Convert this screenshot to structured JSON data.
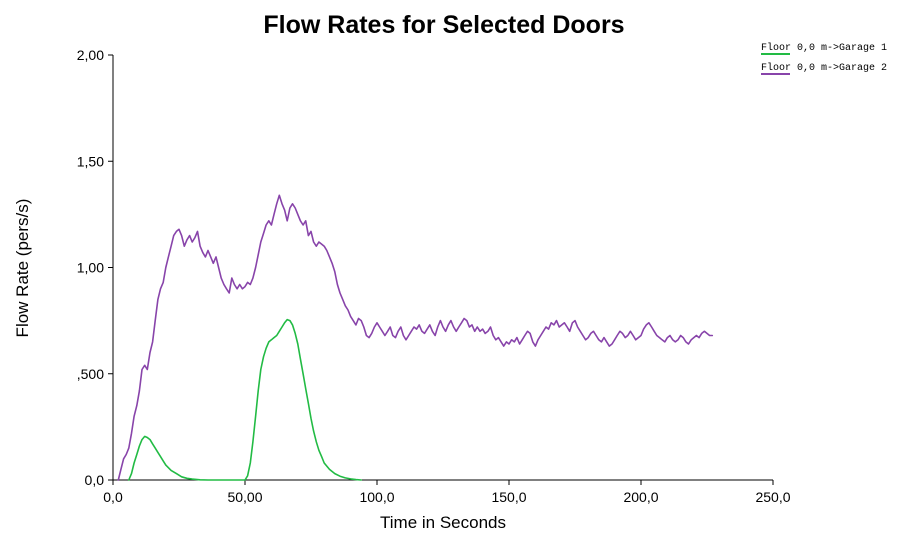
{
  "chart_data": {
    "type": "line",
    "title": "Flow Rates for Selected Doors",
    "xlabel": "Time in Seconds",
    "ylabel": "Flow Rate (pers/s)",
    "xlim": [
      0,
      250
    ],
    "ylim": [
      0,
      2
    ],
    "grid": false,
    "legend_position": "top-right",
    "x_ticks": [
      {
        "value": 0,
        "label": "0,0"
      },
      {
        "value": 50,
        "label": "50,00"
      },
      {
        "value": 100,
        "label": "100,0"
      },
      {
        "value": 150,
        "label": "150,0"
      },
      {
        "value": 200,
        "label": "200,0"
      },
      {
        "value": 250,
        "label": "250,0"
      }
    ],
    "y_ticks": [
      {
        "value": 0,
        "label": "0,0"
      },
      {
        "value": 0.5,
        "label": ",500"
      },
      {
        "value": 1.0,
        "label": "1,00"
      },
      {
        "value": 1.5,
        "label": "1,50"
      },
      {
        "value": 2.0,
        "label": "2,00"
      }
    ],
    "series": [
      {
        "name": "Floor 0,0 m->Garage 1",
        "color": "#22bb44",
        "points": [
          [
            6,
            0
          ],
          [
            7,
            0.03
          ],
          [
            8,
            0.08
          ],
          [
            9,
            0.12
          ],
          [
            10,
            0.16
          ],
          [
            11,
            0.19
          ],
          [
            12,
            0.205
          ],
          [
            13,
            0.2
          ],
          [
            14,
            0.19
          ],
          [
            15,
            0.17
          ],
          [
            16,
            0.15
          ],
          [
            17,
            0.13
          ],
          [
            18,
            0.11
          ],
          [
            19,
            0.09
          ],
          [
            20,
            0.07
          ],
          [
            22,
            0.045
          ],
          [
            24,
            0.03
          ],
          [
            26,
            0.015
          ],
          [
            28,
            0.008
          ],
          [
            30,
            0.004
          ],
          [
            33,
            0.001
          ],
          [
            36,
            0
          ],
          [
            38,
            0
          ],
          [
            50,
            0
          ],
          [
            51,
            0.02
          ],
          [
            52,
            0.08
          ],
          [
            53,
            0.18
          ],
          [
            54,
            0.3
          ],
          [
            55,
            0.42
          ],
          [
            56,
            0.52
          ],
          [
            57,
            0.58
          ],
          [
            58,
            0.62
          ],
          [
            59,
            0.65
          ],
          [
            60,
            0.66
          ],
          [
            61,
            0.67
          ],
          [
            62,
            0.68
          ],
          [
            63,
            0.7
          ],
          [
            64,
            0.72
          ],
          [
            65,
            0.74
          ],
          [
            66,
            0.755
          ],
          [
            67,
            0.75
          ],
          [
            68,
            0.73
          ],
          [
            69,
            0.69
          ],
          [
            70,
            0.64
          ],
          [
            71,
            0.57
          ],
          [
            72,
            0.5
          ],
          [
            73,
            0.43
          ],
          [
            74,
            0.36
          ],
          [
            75,
            0.29
          ],
          [
            76,
            0.23
          ],
          [
            77,
            0.18
          ],
          [
            78,
            0.14
          ],
          [
            79,
            0.11
          ],
          [
            80,
            0.08
          ],
          [
            82,
            0.05
          ],
          [
            84,
            0.03
          ],
          [
            86,
            0.018
          ],
          [
            88,
            0.01
          ],
          [
            90,
            0.005
          ],
          [
            92,
            0.002
          ],
          [
            94,
            0
          ]
        ]
      },
      {
        "name": "Floor 0,0 m->Garage 2",
        "color": "#8844aa",
        "points": [
          [
            2,
            0
          ],
          [
            3,
            0.05
          ],
          [
            4,
            0.1
          ],
          [
            5,
            0.12
          ],
          [
            6,
            0.15
          ],
          [
            7,
            0.22
          ],
          [
            8,
            0.3
          ],
          [
            9,
            0.35
          ],
          [
            10,
            0.42
          ],
          [
            11,
            0.52
          ],
          [
            12,
            0.54
          ],
          [
            13,
            0.52
          ],
          [
            14,
            0.6
          ],
          [
            15,
            0.65
          ],
          [
            16,
            0.75
          ],
          [
            17,
            0.85
          ],
          [
            18,
            0.9
          ],
          [
            19,
            0.93
          ],
          [
            20,
            1.0
          ],
          [
            21,
            1.05
          ],
          [
            22,
            1.1
          ],
          [
            23,
            1.15
          ],
          [
            24,
            1.17
          ],
          [
            25,
            1.18
          ],
          [
            26,
            1.15
          ],
          [
            27,
            1.1
          ],
          [
            28,
            1.13
          ],
          [
            29,
            1.15
          ],
          [
            30,
            1.12
          ],
          [
            31,
            1.14
          ],
          [
            32,
            1.17
          ],
          [
            33,
            1.1
          ],
          [
            34,
            1.07
          ],
          [
            35,
            1.05
          ],
          [
            36,
            1.08
          ],
          [
            37,
            1.05
          ],
          [
            38,
            1.02
          ],
          [
            39,
            1.05
          ],
          [
            40,
            1.0
          ],
          [
            41,
            0.95
          ],
          [
            42,
            0.92
          ],
          [
            43,
            0.9
          ],
          [
            44,
            0.88
          ],
          [
            45,
            0.95
          ],
          [
            46,
            0.92
          ],
          [
            47,
            0.9
          ],
          [
            48,
            0.92
          ],
          [
            49,
            0.9
          ],
          [
            50,
            0.91
          ],
          [
            51,
            0.93
          ],
          [
            52,
            0.92
          ],
          [
            53,
            0.95
          ],
          [
            54,
            1.0
          ],
          [
            55,
            1.06
          ],
          [
            56,
            1.12
          ],
          [
            57,
            1.16
          ],
          [
            58,
            1.2
          ],
          [
            59,
            1.22
          ],
          [
            60,
            1.2
          ],
          [
            61,
            1.25
          ],
          [
            62,
            1.3
          ],
          [
            63,
            1.34
          ],
          [
            64,
            1.3
          ],
          [
            65,
            1.27
          ],
          [
            66,
            1.22
          ],
          [
            67,
            1.28
          ],
          [
            68,
            1.3
          ],
          [
            69,
            1.28
          ],
          [
            70,
            1.25
          ],
          [
            71,
            1.22
          ],
          [
            72,
            1.2
          ],
          [
            73,
            1.22
          ],
          [
            74,
            1.15
          ],
          [
            75,
            1.17
          ],
          [
            76,
            1.12
          ],
          [
            77,
            1.1
          ],
          [
            78,
            1.12
          ],
          [
            79,
            1.11
          ],
          [
            80,
            1.1
          ],
          [
            81,
            1.08
          ],
          [
            82,
            1.05
          ],
          [
            83,
            1.02
          ],
          [
            84,
            0.98
          ],
          [
            85,
            0.92
          ],
          [
            86,
            0.88
          ],
          [
            87,
            0.85
          ],
          [
            88,
            0.82
          ],
          [
            89,
            0.8
          ],
          [
            90,
            0.77
          ],
          [
            91,
            0.75
          ],
          [
            92,
            0.73
          ],
          [
            93,
            0.76
          ],
          [
            94,
            0.75
          ],
          [
            95,
            0.72
          ],
          [
            96,
            0.68
          ],
          [
            97,
            0.67
          ],
          [
            98,
            0.69
          ],
          [
            99,
            0.72
          ],
          [
            100,
            0.74
          ],
          [
            101,
            0.72
          ],
          [
            102,
            0.7
          ],
          [
            103,
            0.68
          ],
          [
            104,
            0.7
          ],
          [
            105,
            0.72
          ],
          [
            106,
            0.68
          ],
          [
            107,
            0.67
          ],
          [
            108,
            0.7
          ],
          [
            109,
            0.72
          ],
          [
            110,
            0.68
          ],
          [
            111,
            0.66
          ],
          [
            112,
            0.68
          ],
          [
            113,
            0.7
          ],
          [
            114,
            0.72
          ],
          [
            115,
            0.71
          ],
          [
            116,
            0.73
          ],
          [
            117,
            0.7
          ],
          [
            118,
            0.69
          ],
          [
            119,
            0.71
          ],
          [
            120,
            0.73
          ],
          [
            121,
            0.7
          ],
          [
            122,
            0.68
          ],
          [
            123,
            0.72
          ],
          [
            124,
            0.75
          ],
          [
            125,
            0.72
          ],
          [
            126,
            0.7
          ],
          [
            127,
            0.73
          ],
          [
            128,
            0.75
          ],
          [
            129,
            0.72
          ],
          [
            130,
            0.7
          ],
          [
            131,
            0.72
          ],
          [
            132,
            0.74
          ],
          [
            133,
            0.76
          ],
          [
            134,
            0.75
          ],
          [
            135,
            0.72
          ],
          [
            136,
            0.73
          ],
          [
            137,
            0.7
          ],
          [
            138,
            0.72
          ],
          [
            139,
            0.7
          ],
          [
            140,
            0.71
          ],
          [
            141,
            0.69
          ],
          [
            142,
            0.7
          ],
          [
            143,
            0.72
          ],
          [
            144,
            0.68
          ],
          [
            145,
            0.66
          ],
          [
            146,
            0.67
          ],
          [
            147,
            0.65
          ],
          [
            148,
            0.63
          ],
          [
            149,
            0.65
          ],
          [
            150,
            0.64
          ],
          [
            151,
            0.66
          ],
          [
            152,
            0.65
          ],
          [
            153,
            0.67
          ],
          [
            154,
            0.64
          ],
          [
            155,
            0.66
          ],
          [
            156,
            0.68
          ],
          [
            157,
            0.7
          ],
          [
            158,
            0.69
          ],
          [
            159,
            0.65
          ],
          [
            160,
            0.63
          ],
          [
            161,
            0.66
          ],
          [
            162,
            0.68
          ],
          [
            163,
            0.7
          ],
          [
            164,
            0.72
          ],
          [
            165,
            0.71
          ],
          [
            166,
            0.74
          ],
          [
            167,
            0.73
          ],
          [
            168,
            0.75
          ],
          [
            169,
            0.72
          ],
          [
            170,
            0.73
          ],
          [
            171,
            0.74
          ],
          [
            172,
            0.72
          ],
          [
            173,
            0.7
          ],
          [
            174,
            0.74
          ],
          [
            175,
            0.75
          ],
          [
            176,
            0.72
          ],
          [
            177,
            0.7
          ],
          [
            178,
            0.68
          ],
          [
            179,
            0.66
          ],
          [
            180,
            0.67
          ],
          [
            181,
            0.69
          ],
          [
            182,
            0.7
          ],
          [
            183,
            0.68
          ],
          [
            184,
            0.66
          ],
          [
            185,
            0.65
          ],
          [
            186,
            0.67
          ],
          [
            187,
            0.65
          ],
          [
            188,
            0.63
          ],
          [
            189,
            0.64
          ],
          [
            190,
            0.66
          ],
          [
            191,
            0.68
          ],
          [
            192,
            0.7
          ],
          [
            193,
            0.69
          ],
          [
            194,
            0.67
          ],
          [
            195,
            0.68
          ],
          [
            196,
            0.7
          ],
          [
            197,
            0.68
          ],
          [
            198,
            0.66
          ],
          [
            199,
            0.67
          ],
          [
            200,
            0.68
          ],
          [
            201,
            0.71
          ],
          [
            202,
            0.73
          ],
          [
            203,
            0.74
          ],
          [
            204,
            0.72
          ],
          [
            205,
            0.7
          ],
          [
            206,
            0.68
          ],
          [
            207,
            0.67
          ],
          [
            208,
            0.66
          ],
          [
            209,
            0.65
          ],
          [
            210,
            0.67
          ],
          [
            211,
            0.68
          ],
          [
            212,
            0.66
          ],
          [
            213,
            0.65
          ],
          [
            214,
            0.66
          ],
          [
            215,
            0.68
          ],
          [
            216,
            0.67
          ],
          [
            217,
            0.65
          ],
          [
            218,
            0.64
          ],
          [
            219,
            0.66
          ],
          [
            220,
            0.67
          ],
          [
            221,
            0.68
          ],
          [
            222,
            0.67
          ],
          [
            223,
            0.69
          ],
          [
            224,
            0.7
          ],
          [
            225,
            0.69
          ],
          [
            226,
            0.68
          ],
          [
            227,
            0.68
          ]
        ]
      }
    ]
  }
}
